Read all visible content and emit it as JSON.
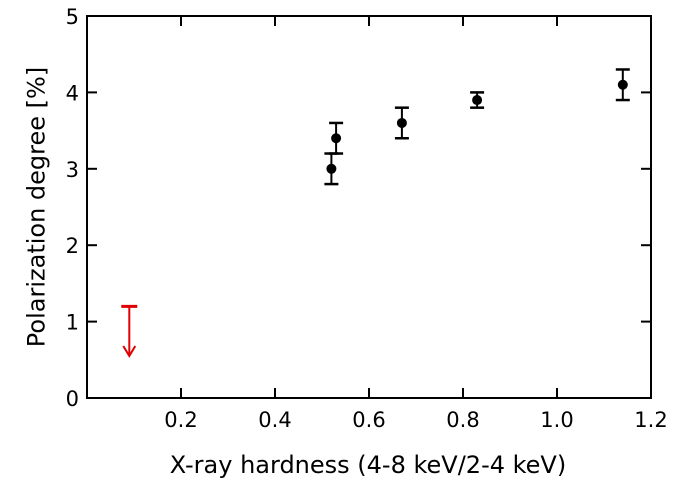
{
  "chart_data": {
    "type": "scatter",
    "xlabel": "X-ray hardness (4-8 keV/2-4 keV)",
    "ylabel": "Polarization degree [%]",
    "xlim": [
      0.0,
      1.2
    ],
    "ylim": [
      0,
      5
    ],
    "x_ticks": [
      0.2,
      0.4,
      0.6,
      0.8,
      1.0,
      1.2
    ],
    "x_tick_labels": [
      "0.2",
      "0.4",
      "0.6",
      "0.8",
      "1.0",
      "1.2"
    ],
    "y_ticks": [
      0,
      1,
      2,
      3,
      4,
      5
    ],
    "y_tick_labels": [
      "0",
      "1",
      "2",
      "3",
      "4",
      "5"
    ],
    "grid": false,
    "series": [
      {
        "color": "#000000",
        "points": [
          {
            "x": 0.52,
            "y": 3.0,
            "err_low": 2.8,
            "err_high": 3.2
          },
          {
            "x": 0.53,
            "y": 3.4,
            "err_low": 3.2,
            "err_high": 3.6
          },
          {
            "x": 0.67,
            "y": 3.6,
            "err_low": 3.4,
            "err_high": 3.8
          },
          {
            "x": 0.83,
            "y": 3.9,
            "err_low": 3.8,
            "err_high": 4.0
          },
          {
            "x": 1.14,
            "y": 4.1,
            "err_low": 3.9,
            "err_high": 4.3
          }
        ]
      }
    ],
    "upper_limits": [
      {
        "x": 0.09,
        "y": 1.2,
        "arrow_to": 0.55,
        "color": "#e00000"
      }
    ]
  }
}
